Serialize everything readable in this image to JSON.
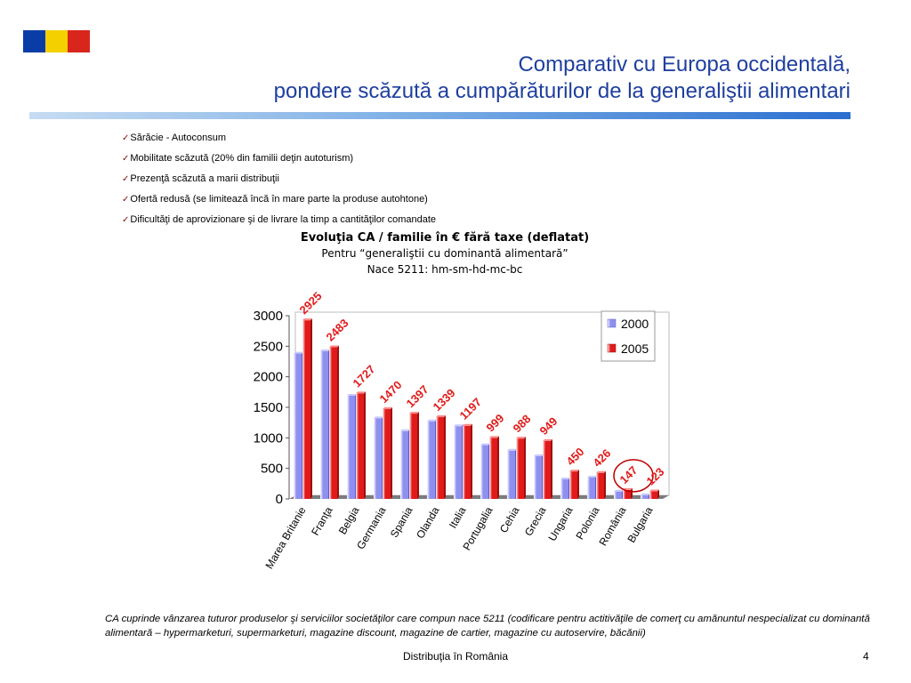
{
  "flag": {
    "colors": [
      "#0a3ca6",
      "#f5d000",
      "#d8261c"
    ]
  },
  "title": {
    "line1": "Comparativ cu Europa occidentală,",
    "line2": "pondere scăzută a cumpărăturilor de la generaliştii alimentari"
  },
  "bullets": [
    "Sărăcie - Autoconsum",
    "Mobilitate scăzută (20% din familii deţin autoturism)",
    "Prezenţă scăzută a marii distribuţii",
    "Ofertă redusă (se limitează încă în mare parte la produse autohtone)",
    "Dificultăţi de aprovizionare şi de livrare la timp a cantităţilor comandate"
  ],
  "chart_data": {
    "type": "bar",
    "title": "Evoluţia CA / familie în € fără taxe (deflatat)",
    "subtitle1": "Pentru “generaliştii cu dominantă alimentară”",
    "subtitle2": "Nace 5211: hm-sm-hd-mc-bc",
    "categories": [
      "Marea Britanie",
      "Franţa",
      "Belgia",
      "Germania",
      "Spania",
      "Olanda",
      "Italia",
      "Portugalia",
      "Cehia",
      "Grecia",
      "Ungaria",
      "Polonia",
      "România",
      "Bulgaria"
    ],
    "series": [
      {
        "name": "2000",
        "color": "#8f8ff0",
        "values": [
          2380,
          2420,
          1690,
          1320,
          1110,
          1270,
          1190,
          880,
          790,
          700,
          320,
          350,
          120,
          60
        ]
      },
      {
        "name": "2005",
        "color": "#e21a1a",
        "values": [
          2925,
          2483,
          1727,
          1470,
          1397,
          1339,
          1197,
          999,
          988,
          949,
          450,
          426,
          147,
          123
        ]
      }
    ],
    "data_labels": [
      "2925",
      "2483",
      "1727",
      "1470",
      "1397",
      "1339",
      "1197",
      "999",
      "988",
      "949",
      "450",
      "426",
      "147",
      "123"
    ],
    "highlighted": "147",
    "yticks": [
      "3000",
      "2500",
      "2000",
      "1500",
      "1000",
      "500",
      "0"
    ],
    "ylim": [
      0,
      3000
    ],
    "legend_position": "top-right",
    "grid": false
  },
  "footnote": "CA cuprinde vânzarea tuturor produselor şi serviciilor societăţilor care compun nace 5211 (codificare pentru actitivăţile de comerţ cu amănuntul nespecializat cu dominantă alimentară – hypermarketuri, supermarketuri, magazine discount, magazine de cartier, magazine cu autoservire, băcănii)",
  "footer": {
    "center": "Distribuţia în România",
    "page": "4"
  }
}
